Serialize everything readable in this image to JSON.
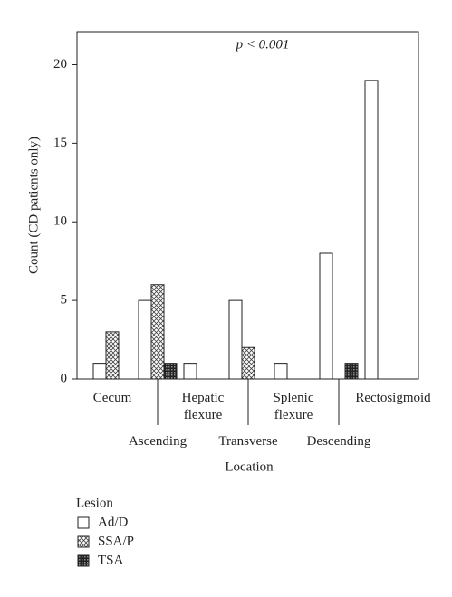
{
  "chart_data": {
    "type": "bar",
    "annotation": "p < 0.001",
    "ylabel": "Count (CD patients only)",
    "xlabel": "Location",
    "legend_title": "Lesion",
    "categories": [
      "Cecum",
      "Ascending",
      "Hepatic flexure",
      "Transverse",
      "Splenic flexure",
      "Descending",
      "Rectosigmoid"
    ],
    "series": [
      {
        "name": "Ad/D",
        "color": "#ffffff",
        "pattern": "none",
        "values": [
          1,
          5,
          1,
          5,
          1,
          8,
          19
        ]
      },
      {
        "name": "SSA/P",
        "color": "#ffffff",
        "pattern": "crosshatch",
        "values": [
          3,
          6,
          0,
          2,
          0,
          0,
          0
        ]
      },
      {
        "name": "TSA",
        "color": "#333333",
        "pattern": "checker",
        "values": [
          0,
          1,
          0,
          0,
          0,
          1,
          0
        ]
      }
    ],
    "ylim": [
      0,
      22.1
    ],
    "yticks": [
      0,
      5,
      10,
      15,
      20
    ]
  }
}
